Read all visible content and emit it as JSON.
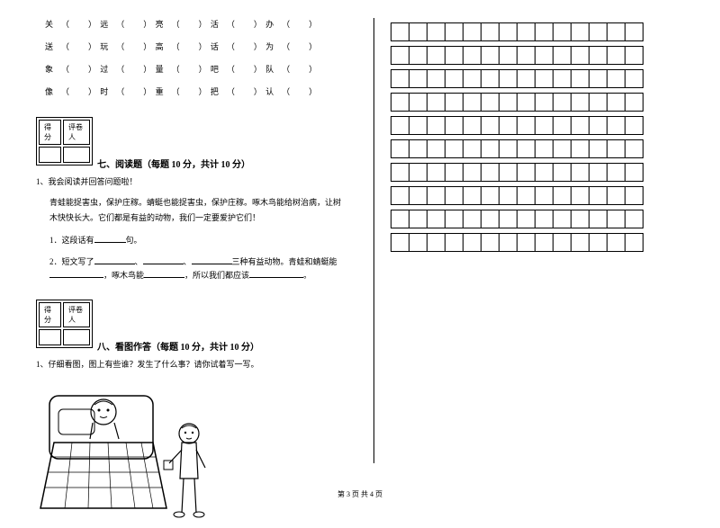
{
  "charRows": [
    [
      {
        "char": "关",
        "blank": "（　　）"
      },
      {
        "char": "远",
        "blank": "（　　）"
      },
      {
        "char": "亮",
        "blank": "（　　）"
      },
      {
        "char": "活",
        "blank": "（　　）"
      },
      {
        "char": "办",
        "blank": "（　　）"
      }
    ],
    [
      {
        "char": "送",
        "blank": "（　　）"
      },
      {
        "char": "玩",
        "blank": "（　　）"
      },
      {
        "char": "高",
        "blank": "（　　）"
      },
      {
        "char": "话",
        "blank": "（　　）"
      },
      {
        "char": "为",
        "blank": "（　　）"
      }
    ],
    [
      {
        "char": "象",
        "blank": "（　　）"
      },
      {
        "char": "过",
        "blank": "（　　）"
      },
      {
        "char": "量",
        "blank": "（　　）"
      },
      {
        "char": "吧",
        "blank": "（　　）"
      },
      {
        "char": "队",
        "blank": "（　　）"
      }
    ],
    [
      {
        "char": "像",
        "blank": "（　　）"
      },
      {
        "char": "时",
        "blank": "（　　）"
      },
      {
        "char": "重",
        "blank": "（　　）"
      },
      {
        "char": "把",
        "blank": "（　　）"
      },
      {
        "char": "认",
        "blank": "（　　）"
      }
    ]
  ],
  "scoreLabels": {
    "c1": "得分",
    "c2": "评卷人"
  },
  "section7": {
    "title": "七、阅读题（每题 10 分，共计 10 分）",
    "q1": "1、我会阅读并回答问题啦！",
    "passage": "青蛙能捉害虫，保护庄稼。蜻蜓也能捉害虫，保护庄稼。啄木鸟能给树治病，让树木快快长大。它们都是有益的动物，我们一定要爱护它们！",
    "sub1_pre": "1．这段话有",
    "sub1_post": "句。",
    "sub2_pre": "2．短文写了",
    "sub2_mid1": "、",
    "sub2_mid2": "、",
    "sub2_mid3": "三种有益动物。青蛙和蜻蜓能",
    "sub2_mid4": "，啄木鸟能",
    "sub2_mid5": "，所以我们都应该",
    "sub2_end": "。"
  },
  "section8": {
    "title": "八、看图作答（每题 10 分，共计 10 分）",
    "q1": "1、仔细看图，图上有些谁？发生了什么事？请你试着写一写。"
  },
  "writingGrid": {
    "rows": 10,
    "cols": 14
  },
  "footer": "第 3 页  共 4 页"
}
